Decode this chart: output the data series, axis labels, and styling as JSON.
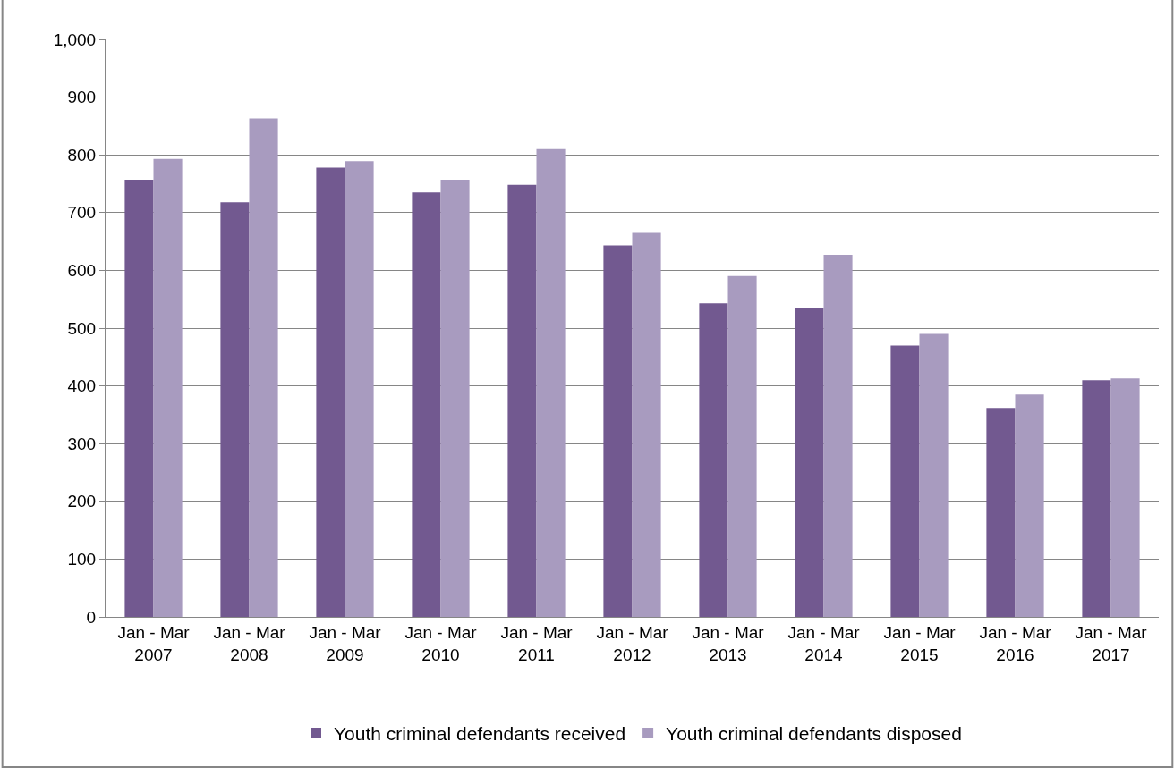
{
  "chart_data": {
    "type": "bar",
    "categories": [
      "Jan - Mar 2007",
      "Jan - Mar 2008",
      "Jan - Mar 2009",
      "Jan - Mar 2010",
      "Jan - Mar 2011",
      "Jan - Mar 2012",
      "Jan - Mar 2013",
      "Jan - Mar 2014",
      "Jan - Mar 2015",
      "Jan - Mar 2016",
      "Jan - Mar 2017"
    ],
    "series": [
      {
        "name": "Youth criminal defendants received",
        "color": "#725990",
        "values": [
          757,
          718,
          778,
          735,
          748,
          643,
          543,
          535,
          470,
          362,
          410
        ]
      },
      {
        "name": "Youth criminal defendants disposed",
        "color": "#a89bbf",
        "values": [
          793,
          863,
          789,
          757,
          810,
          665,
          590,
          627,
          490,
          385,
          413
        ]
      }
    ],
    "ylim": [
      0,
      1000
    ],
    "yticks": [
      0,
      {
        "value": 100,
        "label": "100"
      },
      200,
      300,
      400,
      500,
      600,
      700,
      800,
      900,
      {
        "value": 1000,
        "label": "1,000"
      }
    ],
    "grid": "y",
    "legend": "bottom"
  }
}
